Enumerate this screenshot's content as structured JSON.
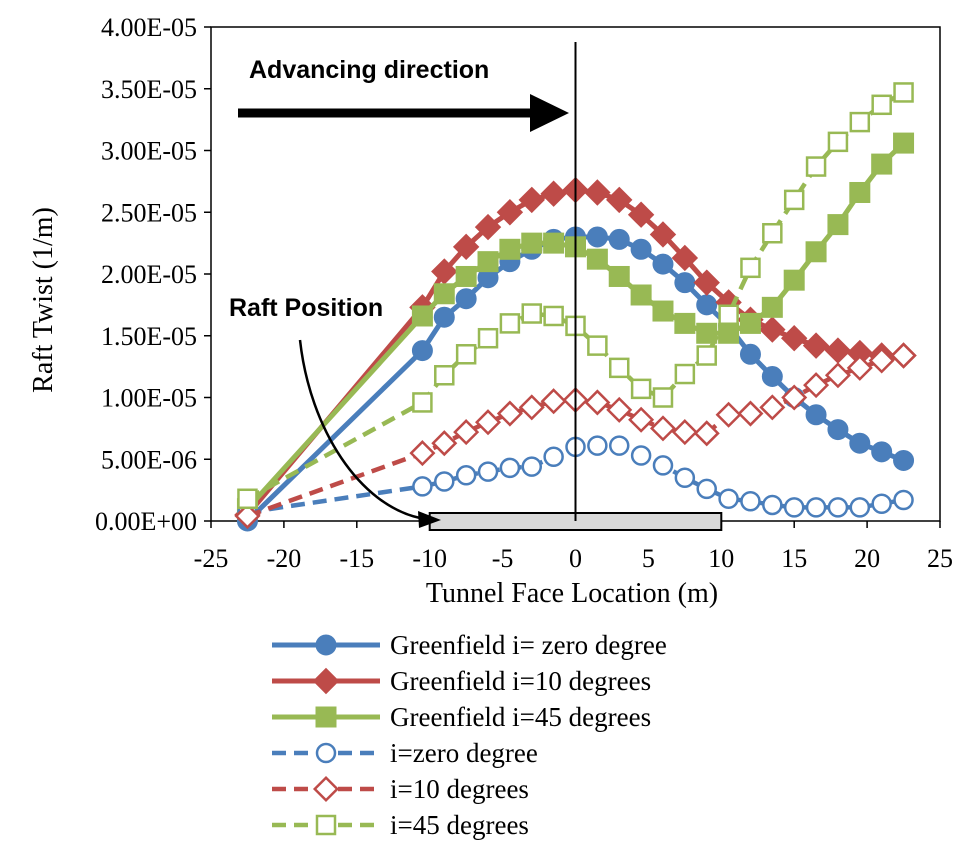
{
  "chart_data": {
    "type": "line",
    "xlabel": "Tunnel Face Location (m)",
    "ylabel": "Raft Twist (1/m)",
    "xlim": [
      -25,
      25
    ],
    "ylim": [
      0,
      4e-05
    ],
    "x_ticks": [
      -25,
      -20,
      -15,
      -10,
      -5,
      0,
      5,
      10,
      15,
      20,
      25
    ],
    "x_tick_labels": [
      "-25",
      "-20",
      "-15",
      "-10",
      "-5",
      "0",
      "5",
      "10",
      "15",
      "20",
      "25"
    ],
    "y_ticks": [
      0,
      5e-06,
      1e-05,
      1.5e-05,
      2e-05,
      2.5e-05,
      3e-05,
      3.5e-05,
      4e-05
    ],
    "y_tick_labels": [
      "0.00E+00",
      "5.00E-06",
      "1.00E-05",
      "1.50E-05",
      "2.00E-05",
      "2.50E-05",
      "3.00E-05",
      "3.50E-05",
      "4.00E-05"
    ],
    "grid": false,
    "legend_position": "bottom",
    "annotations": {
      "advancing_direction": "Advancing direction",
      "raft_position": "Raft Position"
    },
    "raft_extent": [
      -10,
      10
    ],
    "tunnel_face_line_x": 0,
    "series": [
      {
        "name": "Greenfield i= zero degree",
        "color": "#4a7ebb",
        "style": "solid",
        "marker": "circle",
        "filled": true,
        "x": [
          -22.5,
          -10.5,
          -9,
          -7.5,
          -6,
          -4.5,
          -3,
          -1.5,
          0,
          1.5,
          3,
          4.5,
          6,
          7.5,
          9,
          10.5,
          12,
          13.5,
          15,
          16.5,
          18,
          19.5,
          21,
          22.5
        ],
        "y": [
          0.0,
          1.38e-05,
          1.65e-05,
          1.8e-05,
          1.97e-05,
          2.1e-05,
          2.2e-05,
          2.28e-05,
          2.3e-05,
          2.3e-05,
          2.28e-05,
          2.2e-05,
          2.08e-05,
          1.93e-05,
          1.75e-05,
          1.58e-05,
          1.35e-05,
          1.17e-05,
          1e-05,
          8.6e-06,
          7.4e-06,
          6.3e-06,
          5.6e-06,
          4.9e-06
        ]
      },
      {
        "name": "Greenfield i=10 degrees",
        "color": "#be4b48",
        "style": "solid",
        "marker": "diamond",
        "filled": true,
        "x": [
          -22.5,
          -10.5,
          -9,
          -7.5,
          -6,
          -4.5,
          -3,
          -1.5,
          0,
          1.5,
          3,
          4.5,
          6,
          7.5,
          9,
          10.5,
          12,
          13.5,
          15,
          16.5,
          18,
          19.5,
          21,
          22.5
        ],
        "y": [
          5e-07,
          1.73e-05,
          2.02e-05,
          2.22e-05,
          2.38e-05,
          2.5e-05,
          2.6e-05,
          2.65e-05,
          2.68e-05,
          2.66e-05,
          2.6e-05,
          2.48e-05,
          2.32e-05,
          2.13e-05,
          1.93e-05,
          1.77e-05,
          1.63e-05,
          1.55e-05,
          1.48e-05,
          1.42e-05,
          1.38e-05,
          1.36e-05,
          1.34e-05,
          1.34e-05
        ]
      },
      {
        "name": "Greenfield i=45 degrees",
        "color": "#98b954",
        "style": "solid",
        "marker": "square",
        "filled": true,
        "x": [
          -22.5,
          -10.5,
          -9,
          -7.5,
          -6,
          -4.5,
          -3,
          -1.5,
          0,
          1.5,
          3,
          4.5,
          6,
          7.5,
          9,
          10.5,
          12,
          13.5,
          15,
          16.5,
          18,
          19.5,
          21,
          22.5
        ],
        "y": [
          1e-06,
          1.66e-05,
          1.84e-05,
          1.98e-05,
          2.1e-05,
          2.2e-05,
          2.25e-05,
          2.25e-05,
          2.22e-05,
          2.12e-05,
          1.98e-05,
          1.83e-05,
          1.7e-05,
          1.6e-05,
          1.52e-05,
          1.52e-05,
          1.6e-05,
          1.73e-05,
          1.95e-05,
          2.18e-05,
          2.4e-05,
          2.66e-05,
          2.89e-05,
          3.06e-05
        ]
      },
      {
        "name": "i=zero degree",
        "color": "#4a7ebb",
        "style": "dashed",
        "marker": "circle",
        "filled": false,
        "x": [
          -22.5,
          -10.5,
          -9,
          -7.5,
          -6,
          -4.5,
          -3,
          -1.5,
          0,
          1.5,
          3,
          4.5,
          6,
          7.5,
          9,
          10.5,
          12,
          13.5,
          15,
          16.5,
          18,
          19.5,
          21,
          22.5
        ],
        "y": [
          7e-07,
          2.8e-06,
          3.2e-06,
          3.7e-06,
          4e-06,
          4.3e-06,
          4.4e-06,
          5.2e-06,
          6e-06,
          6.1e-06,
          6.1e-06,
          5.3e-06,
          4.5e-06,
          3.5e-06,
          2.6e-06,
          1.8e-06,
          1.6e-06,
          1.3e-06,
          1.1e-06,
          1.1e-06,
          1.1e-06,
          1.1e-06,
          1.4e-06,
          1.7e-06
        ]
      },
      {
        "name": "i=10 degrees",
        "color": "#be4b48",
        "style": "dashed",
        "marker": "diamond",
        "filled": false,
        "x": [
          -22.5,
          -10.5,
          -9,
          -7.5,
          -6,
          -4.5,
          -3,
          -1.5,
          0,
          1.5,
          3,
          4.5,
          6,
          7.5,
          9,
          10.5,
          12,
          13.5,
          15,
          16.5,
          18,
          19.5,
          21,
          22.5
        ],
        "y": [
          4e-07,
          5.5e-06,
          6.3e-06,
          7.2e-06,
          8e-06,
          8.7e-06,
          9.2e-06,
          9.7e-06,
          9.8e-06,
          9.6e-06,
          9e-06,
          8.2e-06,
          7.5e-06,
          7.2e-06,
          7.1e-06,
          8.6e-06,
          8.7e-06,
          9.2e-06,
          1e-05,
          1.1e-05,
          1.18e-05,
          1.24e-05,
          1.3e-05,
          1.34e-05
        ]
      },
      {
        "name": "i=45 degrees",
        "color": "#98b954",
        "style": "dashed",
        "marker": "square",
        "filled": false,
        "x": [
          -22.5,
          -10.5,
          -9,
          -7.5,
          -6,
          -4.5,
          -3,
          -1.5,
          0,
          1.5,
          3,
          4.5,
          6,
          7.5,
          9,
          10.5,
          12,
          13.5,
          15,
          16.5,
          18,
          19.5,
          21,
          22.5
        ],
        "y": [
          1.8e-06,
          9.6e-06,
          1.18e-05,
          1.35e-05,
          1.48e-05,
          1.6e-05,
          1.68e-05,
          1.66e-05,
          1.58e-05,
          1.42e-05,
          1.24e-05,
          1.07e-05,
          1e-05,
          1.19e-05,
          1.34e-05,
          1.67e-05,
          2.05e-05,
          2.33e-05,
          2.6e-05,
          2.87e-05,
          3.07e-05,
          3.23e-05,
          3.37e-05,
          3.47e-05
        ]
      }
    ]
  }
}
